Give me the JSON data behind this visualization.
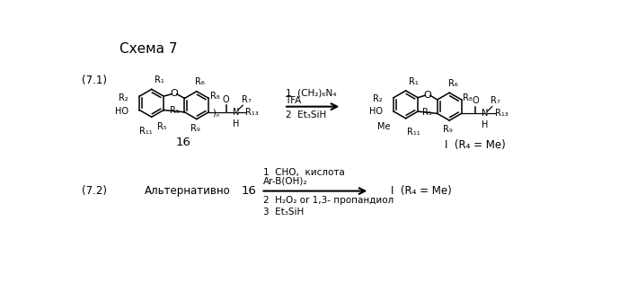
{
  "title": "Схема 7",
  "label_71": "(7.1)",
  "label_72": "(7.2)",
  "compound_16": "16",
  "compound_I_Me": "I  (R₄ = Me)",
  "alt_text": "Альтернативно",
  "reagents_71_line1": "1  (CH₂)₆N₄",
  "reagents_71_line2": "TFA",
  "reagents_71_line3": "2  Et₃SiH",
  "reagents_72_line1": "1  CHO,  кислота",
  "reagents_72_line2": "Ar-B(OH)₂",
  "reagents_72_line3": "2  H₂O₂ or 1,3- пропандиол",
  "reagents_72_line4": "3  Et₃SiH",
  "bg_color": "#ffffff",
  "text_color": "#000000",
  "fontsize_title": 11,
  "fontsize_label": 8.5,
  "fontsize_reagent": 7.5,
  "fontsize_struct": 7.0
}
